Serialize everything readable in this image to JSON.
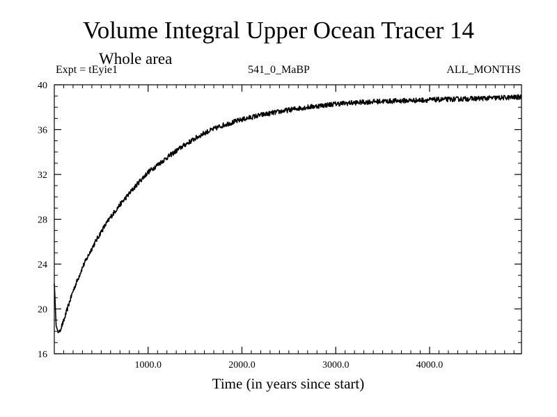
{
  "chart_data": {
    "type": "line",
    "title": "Volume Integral Upper Ocean Tracer 14",
    "subtitle": "Whole area",
    "annotations": {
      "left": "Expt = tEyie1",
      "center": "541_0_MaBP",
      "right": "ALL_MONTHS"
    },
    "xlabel": "Time (in years since start)",
    "ylabel": "",
    "xlim": [
      0,
      4980
    ],
    "ylim": [
      16,
      40
    ],
    "x_ticks": [
      1000,
      2000,
      3000,
      4000
    ],
    "x_tick_labels": [
      "1000.0",
      "2000.0",
      "3000.0",
      "4000.0"
    ],
    "y_ticks": [
      16,
      20,
      24,
      28,
      32,
      36,
      40
    ],
    "y_tick_labels": [
      "16",
      "20",
      "24",
      "28",
      "32",
      "36",
      "40"
    ],
    "series": [
      {
        "name": "Volume Integral Upper Ocean Tracer 14",
        "x": [
          0,
          20,
          40,
          60,
          100,
          150,
          200,
          300,
          400,
          500,
          600,
          700,
          800,
          900,
          1000,
          1200,
          1400,
          1600,
          1800,
          2000,
          2200,
          2400,
          2600,
          2800,
          3000,
          3200,
          3400,
          3600,
          3800,
          4000,
          4200,
          4400,
          4600,
          4800,
          4980
        ],
        "values": [
          22.3,
          18.5,
          17.9,
          18.1,
          18.9,
          20.3,
          21.6,
          23.7,
          25.4,
          26.9,
          28.2,
          29.3,
          30.3,
          31.3,
          32.2,
          33.5,
          34.7,
          35.7,
          36.4,
          36.9,
          37.3,
          37.6,
          37.9,
          38.1,
          38.3,
          38.4,
          38.5,
          38.55,
          38.6,
          38.65,
          38.7,
          38.75,
          38.8,
          38.85,
          38.9
        ]
      }
    ]
  }
}
